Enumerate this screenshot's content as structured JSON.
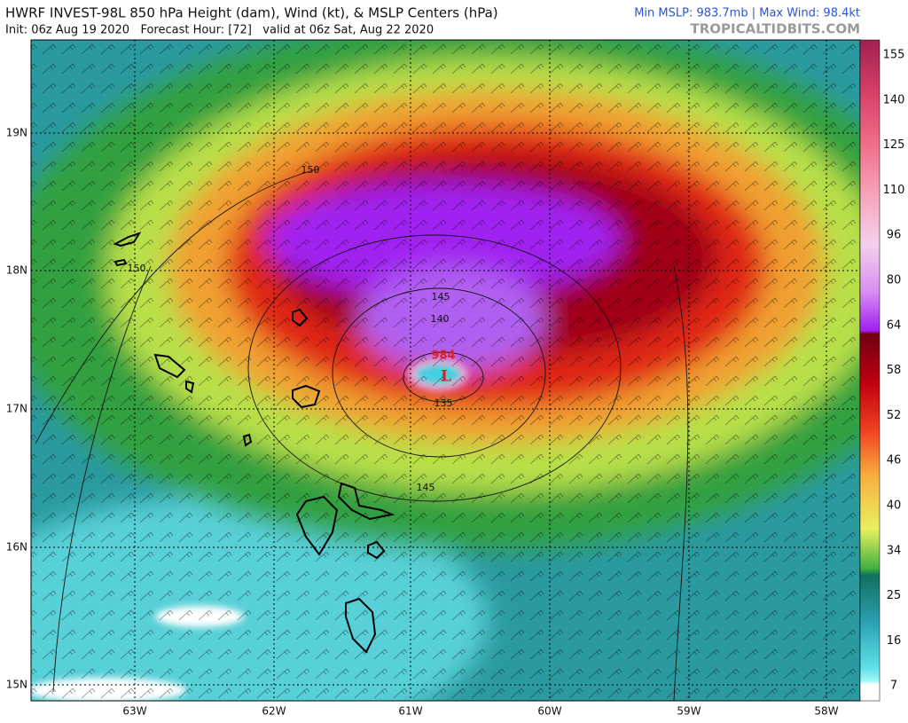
{
  "header": {
    "title": "HWRF INVEST-98L 850 hPa Height (dam), Wind (kt), & MSLP Centers (hPa)",
    "subtitle": "Init: 06z Aug 19 2020   Forecast Hour: [72]   valid at 06z Sat, Aug 22 2020",
    "stats": "Min MSLP: 983.7mb | Max Wind: 98.4kt",
    "site": "TROPICALTIDBITS.COM"
  },
  "axes": {
    "lat_labels": [
      "19N",
      "18N",
      "17N",
      "16N",
      "15N"
    ],
    "lon_labels": [
      "63W",
      "62W",
      "61W",
      "60W",
      "59W",
      "58W"
    ]
  },
  "colorbar": {
    "ticks": [
      155,
      140,
      125,
      110,
      96,
      80,
      64,
      58,
      52,
      46,
      40,
      34,
      25,
      16,
      7
    ]
  },
  "contour_labels": [
    150,
    150,
    145,
    140,
    135,
    145
  ],
  "center": {
    "pressure": 984,
    "symbol": "L"
  }
}
